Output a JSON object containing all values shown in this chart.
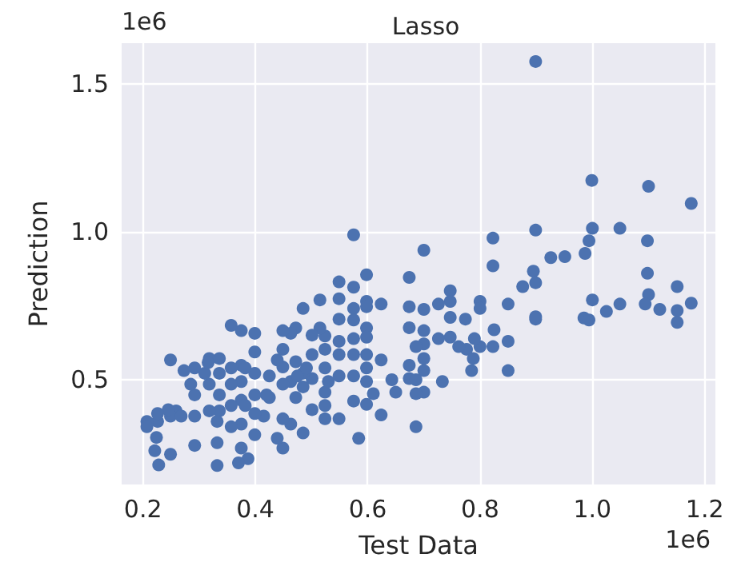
{
  "chart_data": {
    "type": "scatter",
    "title": "Lasso",
    "xlabel": "Test Data",
    "ylabel": "Prediction",
    "annotations": [
      "1e6",
      "1e6"
    ],
    "xlim": [
      0.162,
      1.219
    ],
    "ylim": [
      0.147,
      1.639
    ],
    "xticks": [
      0.2,
      0.4,
      0.6,
      0.8,
      {
        "value": 1,
        "label": "1.0"
      },
      1.2
    ],
    "yticks": [
      0.5,
      {
        "value": 1,
        "label": "1.0"
      },
      1.5
    ],
    "grid": true,
    "marker": "circle",
    "series": [
      {
        "color": "#4c72b0",
        "x": [
          0.899,
          0.999,
          1.1,
          1.176,
          0.899,
          1.0,
          1.049,
          1.098,
          0.994,
          0.823,
          0.823,
          0.575,
          0.7,
          0.926,
          0.951,
          0.987,
          0.895,
          0.899,
          0.876,
          1.098,
          1.151,
          1.1,
          1.0,
          1.049,
          1.094,
          1.176,
          1.025,
          1.12,
          1.151,
          1.151,
          0.899,
          0.899,
          0.985,
          0.994,
          0.85,
          0.8,
          0.8,
          0.825,
          0.85,
          0.823,
          0.8,
          0.79,
          0.776,
          0.762,
          0.747,
          0.747,
          0.747,
          0.774,
          0.726,
          0.747,
          0.726,
          0.7,
          0.7,
          0.7,
          0.7,
          0.7,
          0.7,
          0.686,
          0.674,
          0.674,
          0.674,
          0.674,
          0.674,
          0.686,
          0.686,
          0.686,
          0.733,
          0.785,
          0.85,
          0.788,
          0.624,
          0.598,
          0.598,
          0.598,
          0.598,
          0.598,
          0.598,
          0.598,
          0.598,
          0.598,
          0.61,
          0.624,
          0.624,
          0.643,
          0.65,
          0.575,
          0.575,
          0.575,
          0.575,
          0.575,
          0.575,
          0.575,
          0.584,
          0.549,
          0.549,
          0.549,
          0.549,
          0.549,
          0.549,
          0.549,
          0.524,
          0.524,
          0.524,
          0.524,
          0.524,
          0.524,
          0.515,
          0.515,
          0.501,
          0.501,
          0.501,
          0.501,
          0.485,
          0.485,
          0.485,
          0.485,
          0.472,
          0.472,
          0.472,
          0.463,
          0.463,
          0.463,
          0.449,
          0.449,
          0.449,
          0.449,
          0.449,
          0.449,
          0.439,
          0.439,
          0.425,
          0.425,
          0.415,
          0.399,
          0.399,
          0.399,
          0.399,
          0.399,
          0.399,
          0.387,
          0.375,
          0.375,
          0.375,
          0.375,
          0.375,
          0.375,
          0.37,
          0.357,
          0.357,
          0.357,
          0.357,
          0.357,
          0.336,
          0.336,
          0.336,
          0.336,
          0.332,
          0.332,
          0.318,
          0.318,
          0.318,
          0.31,
          0.292,
          0.292,
          0.292,
          0.292,
          0.285,
          0.259,
          0.249,
          0.249,
          0.249,
          0.245,
          0.226,
          0.224,
          0.221,
          0.228,
          0.207,
          0.207,
          0.226,
          0.268,
          0.273,
          0.316,
          0.382,
          0.42,
          0.475,
          0.491,
          0.53,
          0.382,
          0.332
        ],
        "values": [
          1.577,
          1.175,
          1.155,
          1.097,
          1.007,
          1.013,
          1.013,
          0.971,
          0.971,
          0.98,
          0.886,
          0.991,
          0.939,
          0.914,
          0.917,
          0.928,
          0.868,
          0.829,
          0.816,
          0.861,
          0.816,
          0.789,
          0.771,
          0.757,
          0.757,
          0.76,
          0.732,
          0.739,
          0.735,
          0.695,
          0.714,
          0.706,
          0.71,
          0.703,
          0.757,
          0.766,
          0.742,
          0.67,
          0.631,
          0.613,
          0.613,
          0.64,
          0.604,
          0.613,
          0.802,
          0.766,
          0.712,
          0.706,
          0.757,
          0.645,
          0.64,
          0.739,
          0.667,
          0.622,
          0.573,
          0.532,
          0.459,
          0.613,
          0.847,
          0.748,
          0.677,
          0.55,
          0.505,
          0.501,
          0.454,
          0.342,
          0.495,
          0.532,
          0.532,
          0.573,
          0.757,
          0.856,
          0.766,
          0.748,
          0.676,
          0.645,
          0.586,
          0.541,
          0.495,
          0.418,
          0.454,
          0.568,
          0.382,
          0.501,
          0.459,
          0.814,
          0.742,
          0.703,
          0.64,
          0.586,
          0.514,
          0.429,
          0.303,
          0.832,
          0.775,
          0.706,
          0.631,
          0.586,
          0.514,
          0.369,
          0.649,
          0.604,
          0.541,
          0.459,
          0.414,
          0.369,
          0.771,
          0.676,
          0.652,
          0.586,
          0.505,
          0.4,
          0.742,
          0.523,
          0.477,
          0.321,
          0.676,
          0.562,
          0.441,
          0.658,
          0.495,
          0.351,
          0.667,
          0.604,
          0.544,
          0.486,
          0.369,
          0.27,
          0.568,
          0.303,
          0.514,
          0.441,
          0.378,
          0.658,
          0.595,
          0.523,
          0.45,
          0.387,
          0.315,
          0.234,
          0.667,
          0.55,
          0.495,
          0.432,
          0.351,
          0.27,
          0.22,
          0.685,
          0.541,
          0.486,
          0.414,
          0.342,
          0.573,
          0.523,
          0.45,
          0.396,
          0.288,
          0.211,
          0.573,
          0.486,
          0.396,
          0.523,
          0.541,
          0.45,
          0.378,
          0.279,
          0.486,
          0.396,
          0.568,
          0.378,
          0.249,
          0.4,
          0.36,
          0.306,
          0.261,
          0.213,
          0.36,
          0.342,
          0.387,
          0.378,
          0.532,
          0.559,
          0.541,
          0.45,
          0.514,
          0.541,
          0.495,
          0.414,
          0.36
        ]
      }
    ]
  }
}
